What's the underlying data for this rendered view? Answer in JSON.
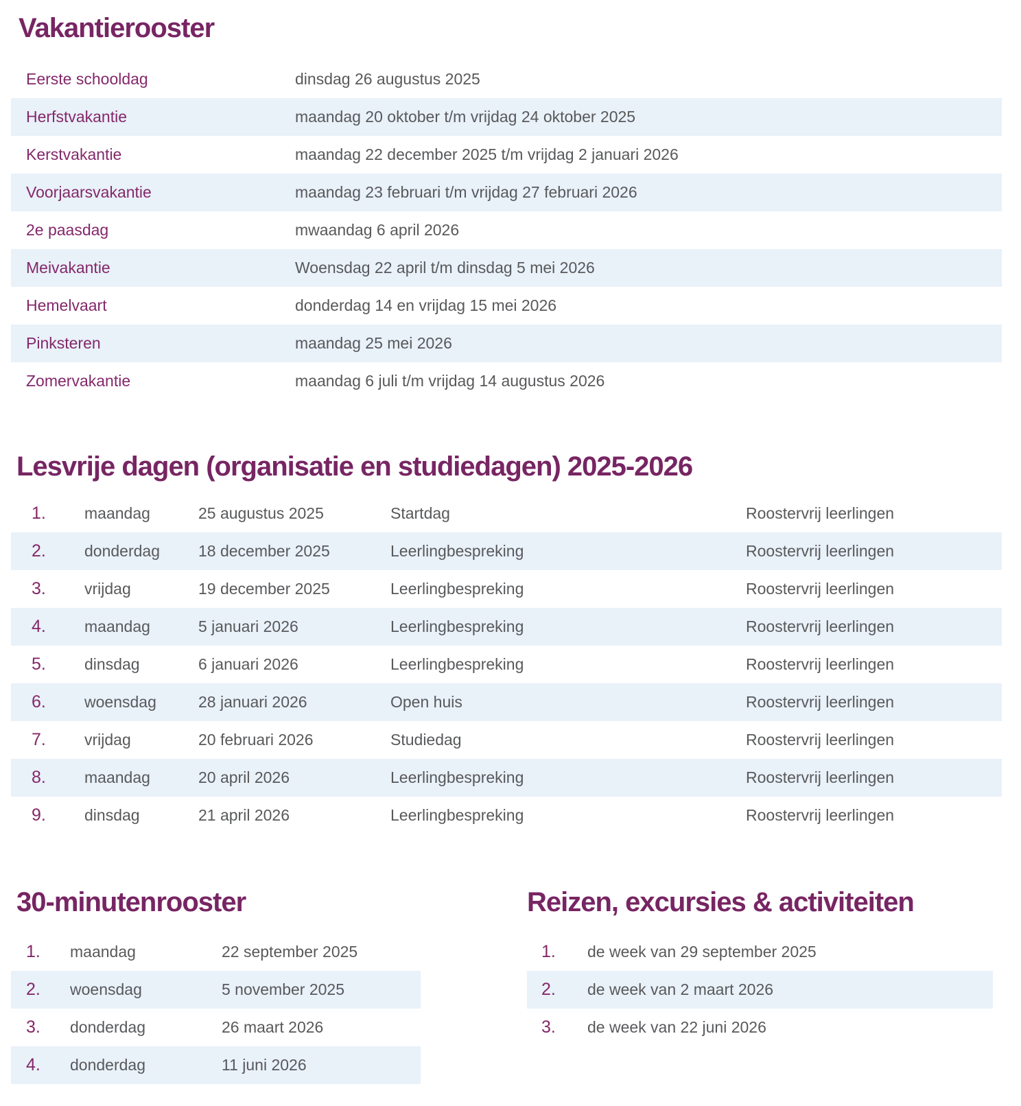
{
  "colors": {
    "title_purple": "#772563",
    "label_purple": "#84286a",
    "body_gray": "#58595b",
    "row_stripe_blue": "#e9f1f9",
    "page_bg": "#ffffff"
  },
  "vakantierooster": {
    "title": "Vakantierooster",
    "rows": [
      {
        "label": "Eerste schooldag",
        "value": "dinsdag 26 augustus 2025"
      },
      {
        "label": "Herfstvakantie",
        "value": "maandag 20 oktober t/m vrijdag 24 oktober 2025"
      },
      {
        "label": "Kerstvakantie",
        "value": "maandag 22 december 2025 t/m vrijdag 2 januari 2026"
      },
      {
        "label": "Voorjaarsvakantie",
        "value": "maandag 23 februari t/m vrijdag 27 februari 2026"
      },
      {
        "label": "2e paasdag",
        "value": "mwaandag 6 april 2026"
      },
      {
        "label": "Meivakantie",
        "value": "Woensdag 22 april t/m dinsdag 5 mei 2026"
      },
      {
        "label": "Hemelvaart",
        "value": "donderdag 14 en vrijdag 15 mei 2026"
      },
      {
        "label": "Pinksteren",
        "value": "maandag 25 mei 2026"
      },
      {
        "label": "Zomervakantie",
        "value": "maandag 6 juli t/m vrijdag 14 augustus 2026"
      }
    ]
  },
  "lesvrije_dagen": {
    "title": "Lesvrije dagen (organisatie en studiedagen) 2025-2026",
    "rows": [
      {
        "num": "1.",
        "day": "maandag",
        "date": "25 augustus 2025",
        "activity": "Startdag",
        "status": "Roostervrij leerlingen"
      },
      {
        "num": "2.",
        "day": "donderdag",
        "date": "18 december 2025",
        "activity": "Leerlingbespreking",
        "status": "Roostervrij leerlingen"
      },
      {
        "num": "3.",
        "day": "vrijdag",
        "date": "19 december 2025",
        "activity": "Leerlingbespreking",
        "status": "Roostervrij leerlingen"
      },
      {
        "num": "4.",
        "day": "maandag",
        "date": "5 januari 2026",
        "activity": "Leerlingbespreking",
        "status": "Roostervrij leerlingen"
      },
      {
        "num": "5.",
        "day": "dinsdag",
        "date": "6 januari 2026",
        "activity": "Leerlingbespreking",
        "status": "Roostervrij leerlingen"
      },
      {
        "num": "6.",
        "day": "woensdag",
        "date": "28 januari 2026",
        "activity": "Open huis",
        "status": "Roostervrij leerlingen"
      },
      {
        "num": "7.",
        "day": "vrijdag",
        "date": "20 februari 2026",
        "activity": "Studiedag",
        "status": "Roostervrij leerlingen"
      },
      {
        "num": "8.",
        "day": "maandag",
        "date": "20 april 2026",
        "activity": "Leerlingbespreking",
        "status": "Roostervrij leerlingen"
      },
      {
        "num": "9.",
        "day": "dinsdag",
        "date": "21 april 2026",
        "activity": "Leerlingbespreking",
        "status": "Roostervrij leerlingen"
      }
    ]
  },
  "minutenrooster": {
    "title": "30-minutenrooster",
    "rows": [
      {
        "num": "1.",
        "day": "maandag",
        "date": "22 september 2025"
      },
      {
        "num": "2.",
        "day": "woensdag",
        "date": "5 november 2025"
      },
      {
        "num": "3.",
        "day": "donderdag",
        "date": "26 maart 2026"
      },
      {
        "num": "4.",
        "day": "donderdag",
        "date": "11 juni 2026"
      }
    ]
  },
  "reizen": {
    "title": "Reizen, excursies & activiteiten",
    "rows": [
      {
        "num": "1.",
        "text": "de week van 29 september 2025"
      },
      {
        "num": "2.",
        "text": "de week van 2 maart 2026"
      },
      {
        "num": "3.",
        "text": "de week van 22 juni 2026"
      }
    ]
  }
}
